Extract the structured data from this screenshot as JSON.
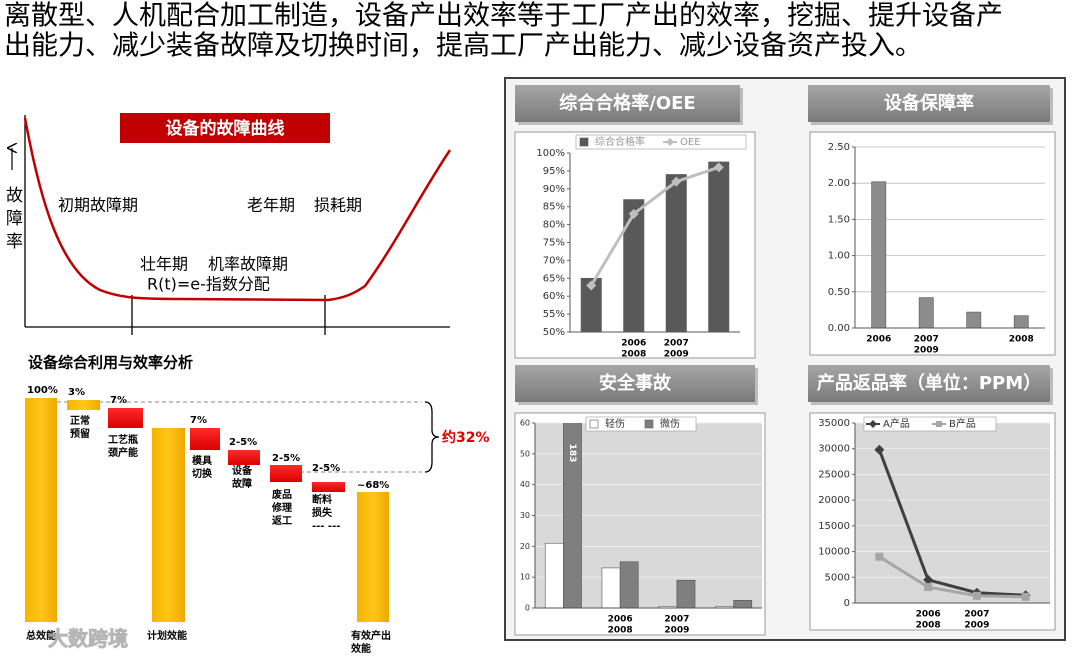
{
  "headline": [
    "离散型、人机配合加工制造，设备产出效率等于工厂产出的效率，挖掘、提升设备产",
    "出能力、减少装备故障及切换时间，提高工厂产出能力、减少设备资产投入。"
  ],
  "failure_curve": {
    "title": "设备的故障曲线",
    "y_label": "故障率",
    "phases": [
      "初期故障期",
      "老年期",
      "损耗期",
      "壮年期",
      "机率故障期"
    ],
    "formula": "R(t)=e-指数分配"
  },
  "waterfall": {
    "title": "设备综合利用与效率分析",
    "steps": [
      {
        "label": [
          "总效能"
        ],
        "value_label": "100%"
      },
      {
        "label": [
          "正常",
          "预留"
        ],
        "value_label": "3%"
      },
      {
        "label": [
          "工艺瓶",
          "颈产能"
        ],
        "value_label": "7%"
      },
      {
        "label": [
          "计划效能"
        ],
        "value_label": null
      },
      {
        "label": [
          "模具",
          "切换"
        ],
        "value_label": "7%"
      },
      {
        "label": [
          "设备",
          "故障"
        ],
        "value_label": "2-5%"
      },
      {
        "label": [
          "废品",
          "修理",
          "返工"
        ],
        "value_label": "2-5%"
      },
      {
        "label": [
          "断料",
          "损失",
          "--- ---"
        ],
        "value_label": "2-5%"
      },
      {
        "label": [
          "有效产出",
          "效能"
        ],
        "value_label": "~68%"
      }
    ],
    "brace_label": "约32%"
  },
  "chart_data": [
    {
      "type": "bar",
      "title": "综合合格率/OEE",
      "categories": [
        null,
        [
          "2006",
          "2008"
        ],
        [
          "2007",
          "2009"
        ],
        null
      ],
      "series": [
        {
          "name": "综合合格率",
          "color": "#595959",
          "values": [
            65,
            87,
            94,
            97.5
          ]
        },
        {
          "name": "OEE",
          "type": "line",
          "marker": "diamond",
          "color": "#bfbfbf",
          "values": [
            63,
            83,
            92,
            96
          ]
        }
      ],
      "ylim": [
        50,
        100
      ],
      "yticks": [
        {
          "value": 50,
          "label": "50%"
        },
        {
          "value": 55,
          "label": "55%"
        },
        {
          "value": 60,
          "label": "60%"
        },
        {
          "value": 65,
          "label": "65%"
        },
        {
          "value": 70,
          "label": "70%"
        },
        {
          "value": 75,
          "label": "75%"
        },
        {
          "value": 80,
          "label": "80%"
        },
        {
          "value": 85,
          "label": "85%"
        },
        {
          "value": 90,
          "label": "90%"
        },
        {
          "value": 95,
          "label": "95%"
        },
        {
          "value": 100,
          "label": "100%"
        }
      ],
      "grid": false,
      "legend": "top"
    },
    {
      "type": "bar",
      "title": "设备保障率",
      "categories": [
        [
          "2006"
        ],
        [
          "2007",
          "2009"
        ],
        null,
        [
          "2008"
        ]
      ],
      "values": [
        2.02,
        0.42,
        0.22,
        0.17
      ],
      "color": "#8c8c8c",
      "ylim": [
        0,
        2.5
      ],
      "yticks": [
        {
          "value": 0,
          "label": "0.00"
        },
        {
          "value": 0.5,
          "label": "0.50"
        },
        {
          "value": 1,
          "label": "1.00"
        },
        {
          "value": 1.5,
          "label": "1.50"
        },
        {
          "value": 2,
          "label": "2.00"
        },
        {
          "value": 2.5,
          "label": "2.50"
        }
      ],
      "grid": true
    },
    {
      "type": "bar",
      "title": "安全事故",
      "categories": [
        null,
        [
          "2006",
          "2008"
        ],
        [
          "2007",
          "2009"
        ],
        null
      ],
      "series": [
        {
          "name": "轻伤",
          "color": "#ffffff",
          "values": [
            21,
            13,
            0.5,
            0.5
          ]
        },
        {
          "name": "微伤",
          "color": "#7f7f7f",
          "values": [
            183,
            15,
            9,
            2.5
          ],
          "value_labels": [
            "183",
            null,
            null,
            null
          ]
        }
      ],
      "ylim": [
        0,
        60
      ],
      "yticks": [
        0,
        10,
        20,
        30,
        40,
        50,
        60
      ],
      "grid": true,
      "plot_background": "#d9d9d9",
      "legend": "top"
    },
    {
      "type": "line",
      "title": "产品返品率（单位：PPM）",
      "categories": [
        null,
        [
          "2006",
          "2008"
        ],
        [
          "2007",
          "2009"
        ],
        null
      ],
      "series": [
        {
          "name": "A产品",
          "marker": "diamond",
          "color": "#404040",
          "values": [
            29800,
            4500,
            2000,
            1500
          ]
        },
        {
          "name": "B产品",
          "marker": "square",
          "color": "#a6a6a6",
          "values": [
            9000,
            3100,
            1400,
            1200
          ]
        }
      ],
      "ylim": [
        0,
        35000
      ],
      "yticks": [
        0,
        5000,
        10000,
        15000,
        20000,
        25000,
        30000,
        35000
      ],
      "grid": true,
      "plot_background": "#d9d9d9",
      "legend": "top"
    }
  ],
  "watermark": "大数跨境"
}
